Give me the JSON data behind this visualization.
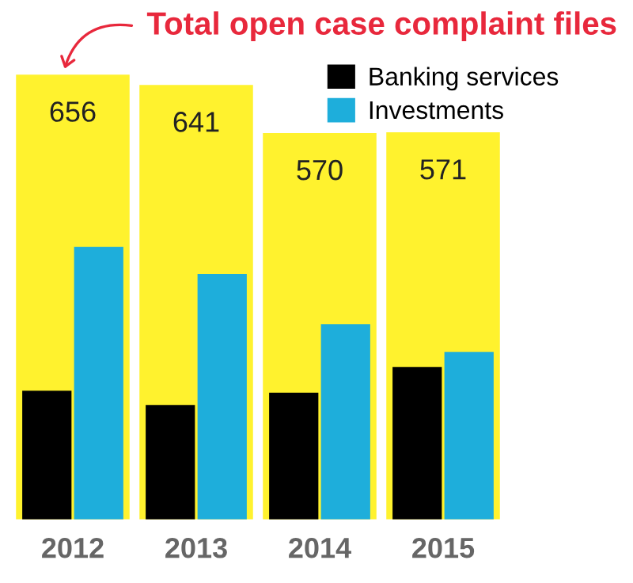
{
  "chart_data": {
    "type": "bar",
    "title": "Total open case complaint files",
    "categories": [
      "2012",
      "2013",
      "2014",
      "2015"
    ],
    "legend": "top right",
    "series": [
      {
        "color": "#fff22e",
        "values": [
          656,
          641,
          570,
          571
        ],
        "value_labels": [
          "656",
          "641",
          "570",
          "571"
        ]
      },
      {
        "name": "Banking services",
        "color": "#000000",
        "values": [
          190,
          169,
          187,
          225
        ]
      },
      {
        "name": "Investments",
        "color": "#1eaedb",
        "values": [
          402,
          362,
          288,
          247
        ]
      }
    ]
  }
}
